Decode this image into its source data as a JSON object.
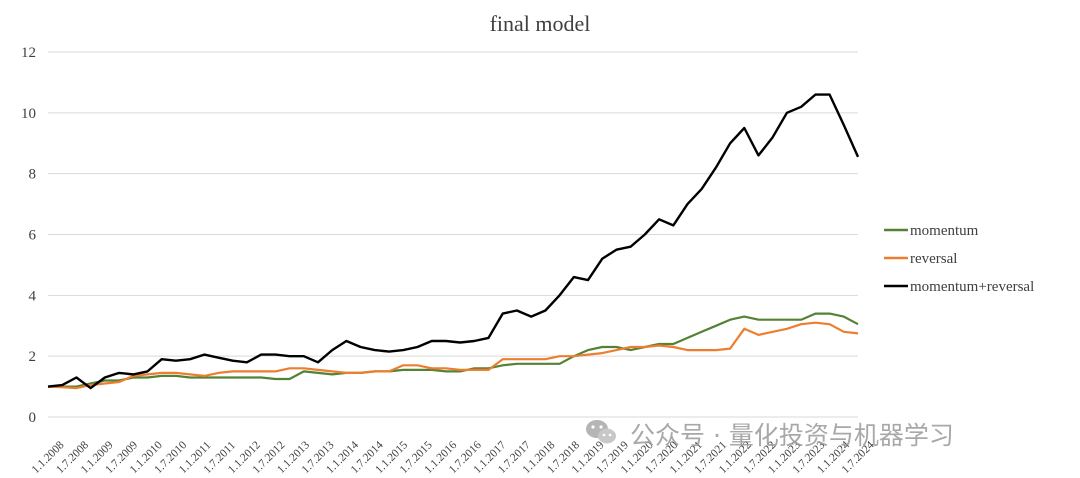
{
  "chart_data": {
    "type": "line",
    "title": "final model",
    "xlabel": "",
    "ylabel": "",
    "ylim": [
      0,
      12
    ],
    "yticks": [
      0,
      2,
      4,
      6,
      8,
      10,
      12
    ],
    "grid": true,
    "legend_position": "right",
    "x_tick_labels": [
      "1.1.2008",
      "1.7.2008",
      "1.1.2009",
      "1.7.2009",
      "1.1.2010",
      "1.7.2010",
      "1.1.2011",
      "1.7.2011",
      "1.1.2012",
      "1.7.2012",
      "1.1.2013",
      "1.7.2013",
      "1.1.2014",
      "1.7.2014",
      "1.1.2015",
      "1.7.2015",
      "1.1.2016",
      "1.7.2016",
      "1.1.2017",
      "1.7.2017",
      "1.1.2018",
      "1.7.2018",
      "1.1.2019",
      "1.7.2019",
      "1.1.2020",
      "1.7.2020",
      "1.1.2021",
      "1.7.2021",
      "1.1.2022",
      "1.7.2022",
      "1.1.2023",
      "1.7.2023",
      "1.1.2024",
      "1.7.2024"
    ],
    "series": [
      {
        "name": "momentum",
        "color": "#548235",
        "values": [
          1.0,
          1.0,
          1.0,
          1.1,
          1.2,
          1.2,
          1.3,
          1.3,
          1.35,
          1.35,
          1.3,
          1.3,
          1.3,
          1.3,
          1.3,
          1.3,
          1.25,
          1.25,
          1.5,
          1.45,
          1.4,
          1.45,
          1.45,
          1.5,
          1.5,
          1.55,
          1.55,
          1.55,
          1.5,
          1.5,
          1.6,
          1.6,
          1.7,
          1.75,
          1.75,
          1.75,
          1.75,
          2.0,
          2.2,
          2.3,
          2.3,
          2.2,
          2.3,
          2.4,
          2.4,
          2.6,
          2.8,
          3.0,
          3.2,
          3.3,
          3.2,
          3.2,
          3.2,
          3.2,
          3.4,
          3.4,
          3.3,
          3.05
        ]
      },
      {
        "name": "reversal",
        "color": "#ed7d31",
        "values": [
          1.0,
          0.98,
          0.95,
          1.05,
          1.1,
          1.15,
          1.35,
          1.4,
          1.45,
          1.45,
          1.4,
          1.35,
          1.45,
          1.5,
          1.5,
          1.5,
          1.5,
          1.6,
          1.6,
          1.55,
          1.5,
          1.45,
          1.45,
          1.5,
          1.5,
          1.7,
          1.7,
          1.6,
          1.6,
          1.55,
          1.55,
          1.55,
          1.9,
          1.9,
          1.9,
          1.9,
          2.0,
          2.0,
          2.05,
          2.1,
          2.2,
          2.3,
          2.3,
          2.35,
          2.3,
          2.2,
          2.2,
          2.2,
          2.25,
          2.9,
          2.7,
          2.8,
          2.9,
          3.05,
          3.1,
          3.05,
          2.8,
          2.75
        ]
      },
      {
        "name": "momentum+reversal",
        "color": "#000000",
        "values": [
          1.0,
          1.05,
          1.3,
          0.95,
          1.3,
          1.45,
          1.4,
          1.5,
          1.9,
          1.85,
          1.9,
          2.05,
          1.95,
          1.85,
          1.8,
          2.05,
          2.05,
          2.0,
          2.0,
          1.8,
          2.2,
          2.5,
          2.3,
          2.2,
          2.15,
          2.2,
          2.3,
          2.5,
          2.5,
          2.45,
          2.5,
          2.6,
          3.4,
          3.5,
          3.3,
          3.5,
          4.0,
          4.6,
          4.5,
          5.2,
          5.5,
          5.6,
          6.0,
          6.5,
          6.3,
          7.0,
          7.5,
          8.2,
          9.0,
          9.5,
          8.6,
          9.2,
          10.0,
          10.2,
          10.6,
          10.6,
          9.6,
          8.55
        ]
      }
    ]
  },
  "watermark": {
    "text": "公众号 · 量化投资与机器学习",
    "icon": "wechat-icon"
  }
}
